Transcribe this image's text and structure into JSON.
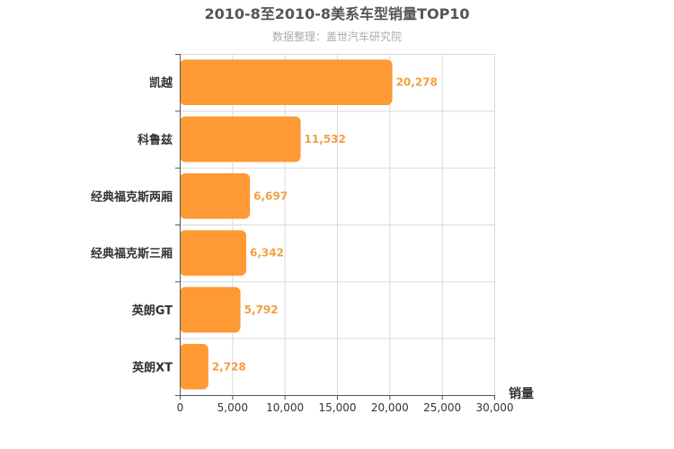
{
  "chart_data": {
    "type": "bar",
    "orientation": "horizontal",
    "title": "2010-8至2010-8美系车型销量TOP10",
    "subtitle": "数据整理：盖世汽车研究院",
    "categories": [
      "凯越",
      "科鲁兹",
      "经典福克斯两厢",
      "经典福克斯三厢",
      "英朗GT",
      "英朗XT"
    ],
    "values": [
      20278,
      11532,
      6697,
      6342,
      5792,
      2728
    ],
    "value_labels": [
      "20,278",
      "11,532",
      "6,697",
      "6,342",
      "5,792",
      "2,728"
    ],
    "xlim": [
      0,
      30000
    ],
    "ticks": [
      0,
      5000,
      10000,
      15000,
      20000,
      25000,
      30000
    ],
    "tick_labels": [
      "0",
      "5,000",
      "10,000",
      "15,000",
      "20,000",
      "25,000",
      "30,000"
    ],
    "xlabel": "销量",
    "ylabel": "",
    "grid": true,
    "bar_color": "#ff9933",
    "label_color": "#f0a040"
  }
}
